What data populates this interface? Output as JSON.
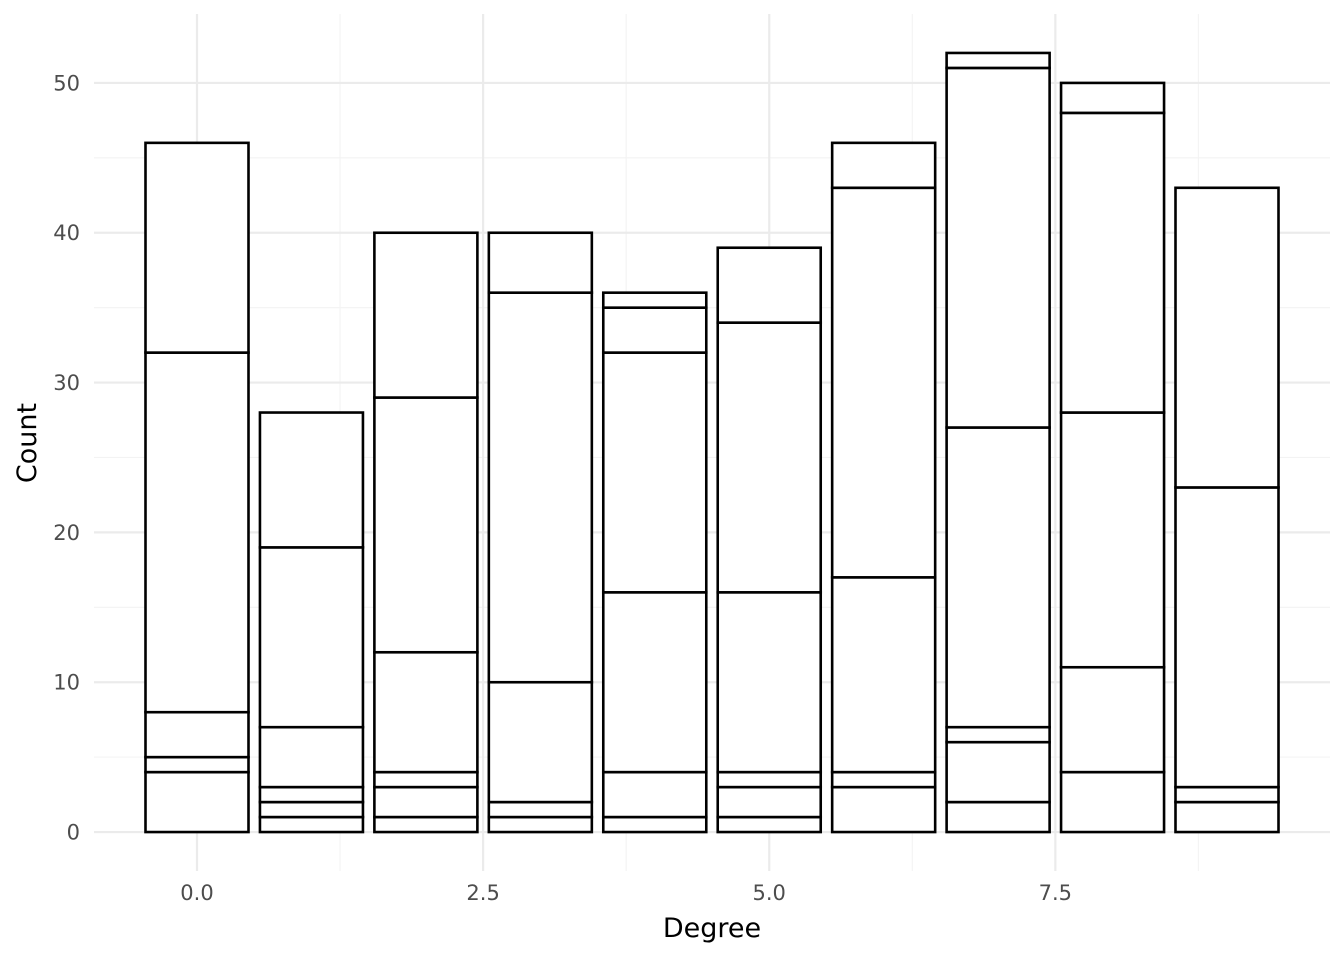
{
  "chart_data": {
    "type": "bar",
    "stacked": true,
    "title": "",
    "xlabel": "Degree",
    "ylabel": "Count",
    "xlim": [
      -0.9,
      9.9
    ],
    "ylim": [
      -2.6,
      54.6
    ],
    "x_major_ticks": [
      0.0,
      2.5,
      5.0,
      7.5
    ],
    "x_tick_labels": [
      "0.0",
      "2.5",
      "5.0",
      "7.5"
    ],
    "x_minor_ticks": [
      1.25,
      3.75,
      6.25,
      8.75
    ],
    "y_major_ticks": [
      0,
      10,
      20,
      30,
      40,
      50
    ],
    "y_tick_labels": [
      "0",
      "10",
      "20",
      "30",
      "40",
      "50"
    ],
    "y_minor_ticks": [
      5,
      15,
      25,
      35,
      45
    ],
    "grid": true,
    "bar_width": 0.9,
    "fill": "#ffffff",
    "outline": "#000000",
    "stacks": [
      {
        "x": 0,
        "boundaries": [
          0,
          4,
          5,
          8,
          32,
          46
        ]
      },
      {
        "x": 1,
        "boundaries": [
          0,
          1,
          2,
          3,
          7,
          19,
          28
        ]
      },
      {
        "x": 2,
        "boundaries": [
          0,
          1,
          3,
          4,
          12,
          29,
          40
        ]
      },
      {
        "x": 3,
        "boundaries": [
          0,
          1,
          2,
          10,
          36,
          40
        ]
      },
      {
        "x": 4,
        "boundaries": [
          0,
          1,
          4,
          16,
          32,
          35,
          36
        ]
      },
      {
        "x": 5,
        "boundaries": [
          0,
          1,
          3,
          4,
          16,
          34,
          39
        ]
      },
      {
        "x": 6,
        "boundaries": [
          0,
          3,
          4,
          17,
          43,
          46
        ]
      },
      {
        "x": 7,
        "boundaries": [
          0,
          2,
          6,
          7,
          27,
          51,
          52
        ]
      },
      {
        "x": 8,
        "boundaries": [
          0,
          4,
          11,
          28,
          48,
          50
        ]
      },
      {
        "x": 9,
        "boundaries": [
          0,
          2,
          3,
          23,
          43
        ]
      }
    ]
  }
}
